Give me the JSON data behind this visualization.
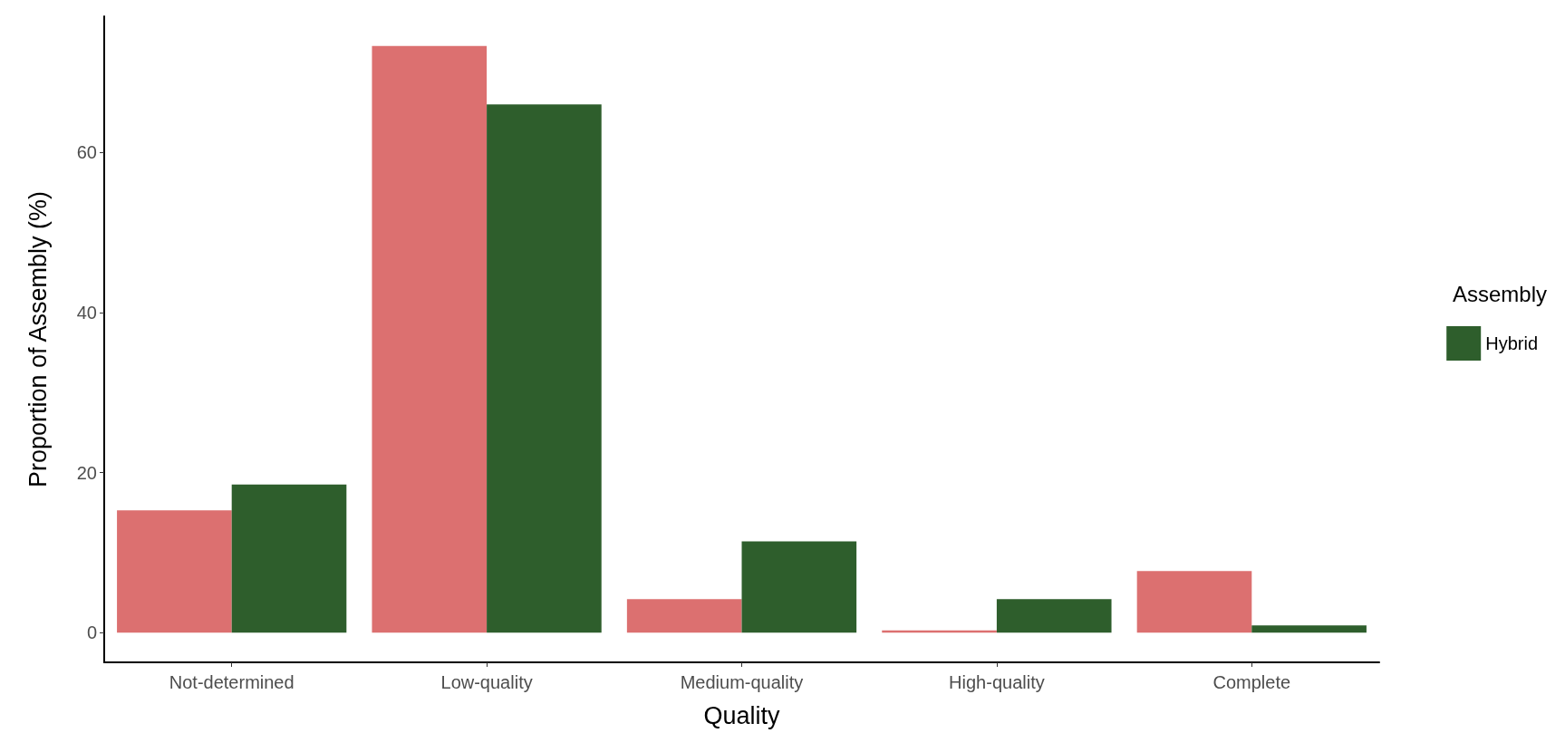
{
  "chart_data": {
    "type": "bar",
    "xlabel": "Quality",
    "ylabel": "Proportion of Assembly (%)",
    "legend_title": "Assembly",
    "categories": [
      "Not-determined",
      "Low-quality",
      "Medium-quality",
      "High-quality",
      "Complete"
    ],
    "series": [
      {
        "color": "#dc7070",
        "values": [
          15.3,
          73.3,
          4.2,
          0.3,
          7.7
        ]
      },
      {
        "name": "Hybrid",
        "color": "#2e5e2c",
        "values": [
          18.5,
          66.0,
          11.4,
          4.2,
          0.9
        ]
      }
    ],
    "ylim": [
      -3.7,
      77
    ],
    "yticks": [
      0,
      20,
      40,
      60
    ],
    "grid": false,
    "legend": "right"
  }
}
